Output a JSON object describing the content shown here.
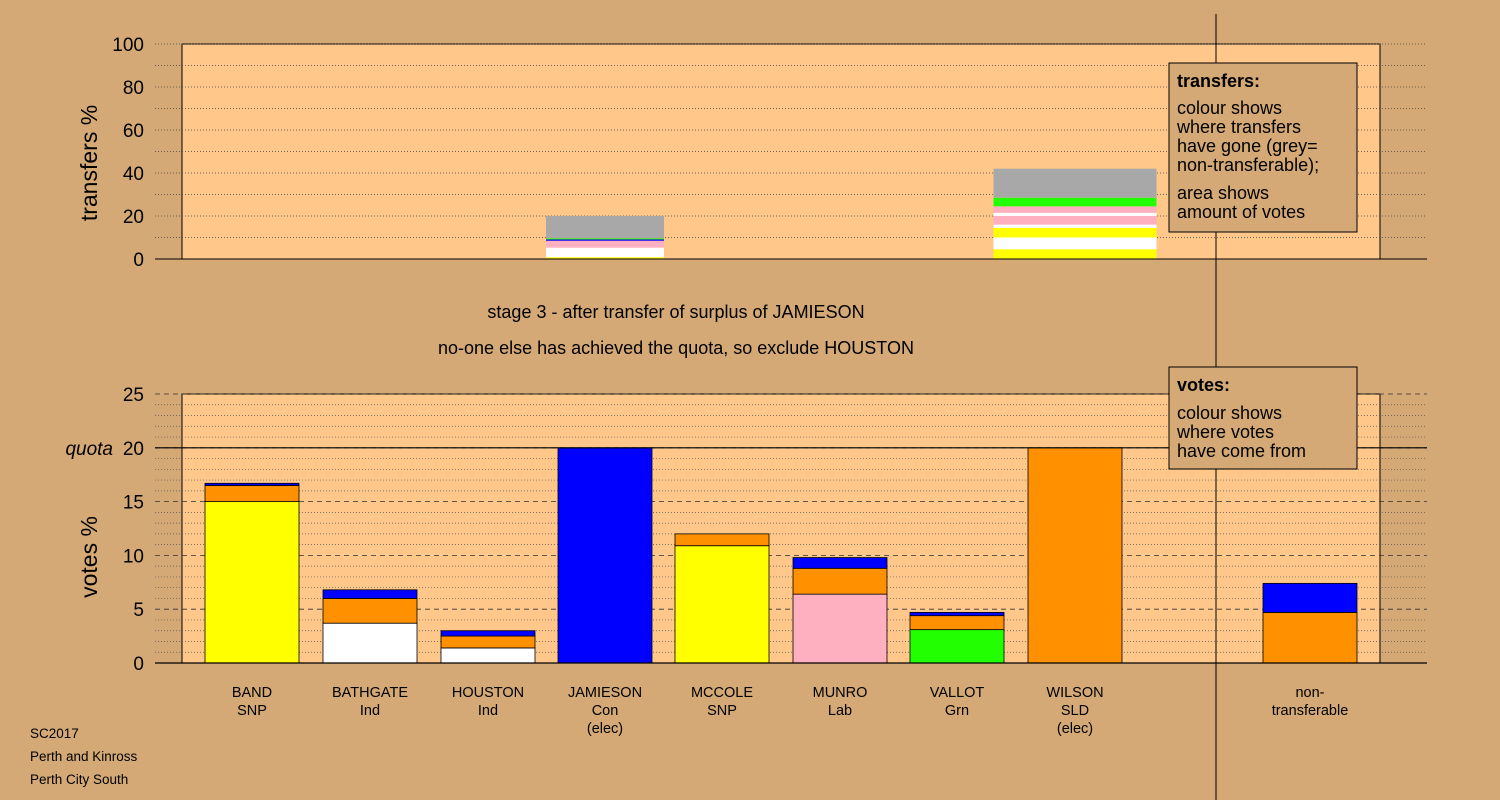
{
  "stage_title": "stage 3 - after transfer of surplus of JAMIESON",
  "stage_subtitle": "no-one else has achieved the quota, so exclude HOUSTON",
  "footer": [
    "SC2017",
    "Perth and Kinross",
    "Perth City South"
  ],
  "colors": {
    "background": "#d4a976",
    "plot_bg": "#ffc88a",
    "SNP": "#ffff00",
    "Ind": "#ffffff",
    "Con": "#0000ff",
    "Lab": "#ffb0c0",
    "Grn": "#22ff00",
    "SLD": "#ff9000",
    "nontransferable": "#a8a8a8"
  },
  "chart_data": [
    {
      "id": "transfers",
      "type": "bar",
      "stacked": true,
      "ylabel": "transfers %",
      "ylim": [
        0,
        100
      ],
      "yticks": [
        0,
        20,
        40,
        60,
        80,
        100
      ],
      "legend": {
        "title": "transfers:",
        "lines": [
          "colour shows",
          "where transfers",
          "have gone (grey=",
          "non-transferable);",
          "area shows",
          "amount of votes"
        ],
        "placement": "top-right"
      },
      "bars": [
        {
          "candidate": "HOUSTON",
          "segments": [
            {
              "party": "SNP",
              "value": 0.8
            },
            {
              "party": "Ind",
              "value": 4.5
            },
            {
              "party": "Lab",
              "value": 3.2
            },
            {
              "party": "Con",
              "value": 0.6
            },
            {
              "party": "Grn",
              "value": 0.5
            },
            {
              "party": "nontransferable",
              "value": 10.4
            }
          ]
        },
        {
          "candidate": "WILSON",
          "segments": [
            {
              "party": "SNP",
              "value": 4.5
            },
            {
              "party": "Ind",
              "value": 5.5
            },
            {
              "party": "SNP",
              "value": 4.5
            },
            {
              "party": "Ind",
              "value": 1.5
            },
            {
              "party": "Lab",
              "value": 4.0
            },
            {
              "party": "Ind",
              "value": 1.5
            },
            {
              "party": "Lab",
              "value": 3.0
            },
            {
              "party": "Grn",
              "value": 4.0
            },
            {
              "party": "nontransferable",
              "value": 13.5
            }
          ]
        }
      ]
    },
    {
      "id": "votes",
      "type": "bar",
      "stacked": true,
      "ylabel": "votes %",
      "ylim": [
        0,
        25
      ],
      "yticks": [
        0,
        5,
        10,
        15,
        20,
        25
      ],
      "quota": 20,
      "quota_label": "quota",
      "legend": {
        "title": "votes:",
        "lines": [
          "colour shows",
          "where votes",
          "have come from"
        ],
        "placement": "top-right"
      },
      "categories": [
        {
          "name": "BAND",
          "party": "SNP",
          "note": "",
          "segments": [
            {
              "party": "SNP",
              "value": 15.0
            },
            {
              "party": "SLD",
              "value": 1.5
            },
            {
              "party": "Con",
              "value": 0.2
            }
          ]
        },
        {
          "name": "BATHGATE",
          "party": "Ind",
          "note": "",
          "segments": [
            {
              "party": "Ind",
              "value": 3.7
            },
            {
              "party": "SLD",
              "value": 2.3
            },
            {
              "party": "Con",
              "value": 0.8
            }
          ]
        },
        {
          "name": "HOUSTON",
          "party": "Ind",
          "note": "",
          "segments": [
            {
              "party": "Ind",
              "value": 1.4
            },
            {
              "party": "SLD",
              "value": 1.1
            },
            {
              "party": "Con",
              "value": 0.5
            }
          ]
        },
        {
          "name": "JAMIESON",
          "party": "Con",
          "note": "(elec)",
          "segments": [
            {
              "party": "Con",
              "value": 20.0
            }
          ]
        },
        {
          "name": "MCCOLE",
          "party": "SNP",
          "note": "",
          "segments": [
            {
              "party": "SNP",
              "value": 10.9
            },
            {
              "party": "SLD",
              "value": 1.1
            }
          ]
        },
        {
          "name": "MUNRO",
          "party": "Lab",
          "note": "",
          "segments": [
            {
              "party": "Lab",
              "value": 6.4
            },
            {
              "party": "SLD",
              "value": 2.4
            },
            {
              "party": "Con",
              "value": 1.0
            }
          ]
        },
        {
          "name": "VALLOT",
          "party": "Grn",
          "note": "",
          "segments": [
            {
              "party": "Grn",
              "value": 3.1
            },
            {
              "party": "SLD",
              "value": 1.3
            },
            {
              "party": "Con",
              "value": 0.3
            }
          ]
        },
        {
          "name": "WILSON",
          "party": "SLD",
          "note": "(elec)",
          "segments": [
            {
              "party": "SLD",
              "value": 20.0
            }
          ]
        },
        {
          "name": "non-",
          "party": "transferable",
          "note": "",
          "segments": [
            {
              "party": "SLD",
              "value": 4.7
            },
            {
              "party": "Con",
              "value": 2.7
            }
          ]
        }
      ]
    }
  ]
}
